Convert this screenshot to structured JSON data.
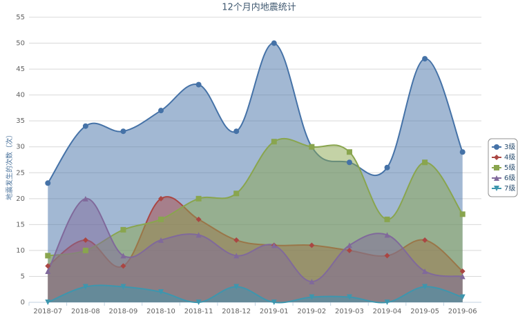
{
  "chart_data": {
    "type": "areaspline",
    "title": "12个月内地震统计",
    "y_label": "地震发生的次数（次）",
    "categories": [
      "2018-07",
      "2018-08",
      "2018-09",
      "2018-10",
      "2018-11",
      "2018-12",
      "2019-01",
      "2019-02",
      "2019-03",
      "2019-04",
      "2019-05",
      "2019-06"
    ],
    "series": [
      {
        "name": "3级",
        "color": "#4572A7",
        "marker": "circle",
        "values": [
          23,
          34,
          33,
          37,
          42,
          33,
          50,
          30,
          27,
          26,
          47,
          29
        ]
      },
      {
        "name": "4级",
        "color": "#AA4643",
        "marker": "diamond",
        "values": [
          7,
          12,
          7,
          20,
          16,
          12,
          11,
          11,
          10,
          9,
          12,
          6
        ]
      },
      {
        "name": "5级",
        "color": "#89A54E",
        "marker": "square",
        "values": [
          9,
          10,
          14,
          16,
          20,
          21,
          31,
          30,
          29,
          16,
          27,
          17
        ]
      },
      {
        "name": "6级",
        "color": "#80699B",
        "marker": "triangle",
        "values": [
          6,
          20,
          9,
          12,
          13,
          9,
          11,
          4,
          11,
          13,
          6,
          5
        ]
      },
      {
        "name": "7级",
        "color": "#3D96AE",
        "marker": "triangle-down",
        "values": [
          0,
          3,
          3,
          2,
          0,
          3,
          0,
          1,
          1,
          0,
          3,
          1
        ]
      }
    ],
    "ylim": [
      0,
      55
    ],
    "yticks": [
      0,
      5,
      10,
      15,
      20,
      25,
      30,
      35,
      40,
      45,
      50,
      55
    ],
    "grid": true,
    "legend": "right"
  }
}
